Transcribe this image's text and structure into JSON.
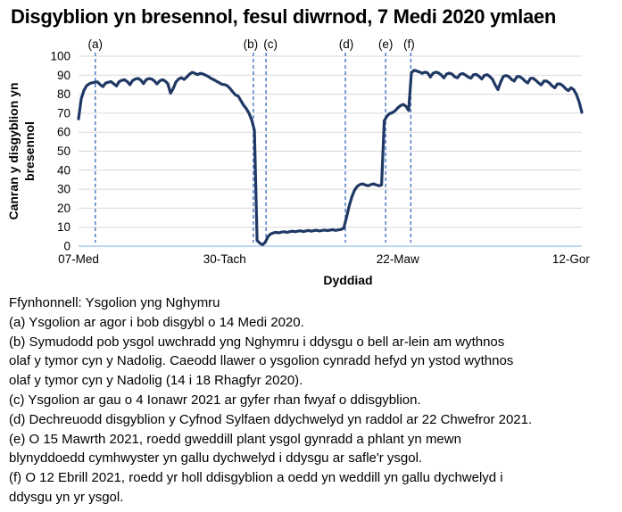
{
  "title": "Disgyblion yn bresennol, fesul diwrnod, 7 Medi 2020 ymlaen",
  "footer": {
    "source": "Ffynhonnell: Ysgolion yng Nghymru",
    "notes": [
      "(a) Ysgolion ar agor i bob disgybl o 14 Medi 2020.",
      "(b) Symudodd pob ysgol uwchradd yng Nghymru i ddysgu o bell ar-lein am wythnos\nolaf y tymor cyn y Nadolig. Caeodd llawer o ysgolion cynradd hefyd yn ystod wythnos\nolaf y tymor cyn y Nadolig (14 i 18 Rhagfyr 2020).",
      "(c) Ysgolion ar gau o 4 Ionawr 2021 ar gyfer rhan fwyaf o ddisgyblion.",
      "(d) Dechreuodd disgyblion y Cyfnod Sylfaen ddychwelyd yn raddol ar 22 Chwefror 2021.",
      "(e) O 15 Mawrth 2021, roedd gweddill plant ysgol gynradd a phlant yn mewn\nblynyddoedd cymhwyster yn gallu dychwelyd i ddysgu ar safle'r ysgol.",
      "(f) O 12 Ebrill 2021, roedd yr holl ddisgyblion a oedd yn weddill yn gallu dychwelyd i\nddysgu yn yr ysgol."
    ]
  },
  "chart_data": {
    "type": "line",
    "title": "Disgyblion yn bresennol, fesul diwrnod, 7 Medi 2020 ymlaen",
    "xlabel": "Dyddiad",
    "ylabel": "Canran y disgyblion yn bresennol",
    "ylabel_lines": [
      "Canran y disgyblion yn",
      "bresennol"
    ],
    "ylim": [
      0,
      100
    ],
    "ytick_step": 10,
    "grid": true,
    "legend_position": "none",
    "x_axis_unit": "school-day index from 07 Medi 2020",
    "x_range_days": [
      0,
      186
    ],
    "x_ticks": [
      {
        "label": "07-Med",
        "day": 0
      },
      {
        "label": "30-Tach",
        "day": 54
      },
      {
        "label": "22-Maw",
        "day": 118
      },
      {
        "label": "12-Gor",
        "day": 182
      }
    ],
    "annotations": [
      {
        "label": "(a)",
        "day": 6.2,
        "label_dx": 0
      },
      {
        "label": "(b)",
        "day": 64.6,
        "label_dx": -3
      },
      {
        "label": "(c)",
        "day": 69.3,
        "label_dx": 5
      },
      {
        "label": "(d)",
        "day": 98.6,
        "label_dx": 1
      },
      {
        "label": "(e)",
        "day": 113.5,
        "label_dx": 0
      },
      {
        "label": "(f)",
        "day": 122.8,
        "label_dx": -2
      }
    ],
    "colors": {
      "line": "#1F3864",
      "annotation": "#4472C4",
      "grid": "#D9D9D9",
      "axis": "#A6C9EC",
      "text": "#000000"
    },
    "series": [
      {
        "name": "Canran y disgyblion yn bresennol (%)",
        "points": [
          [
            0,
            67
          ],
          [
            1,
            77.5
          ],
          [
            2,
            82
          ],
          [
            3,
            84.5
          ],
          [
            4,
            85.5
          ],
          [
            5,
            86
          ],
          [
            6,
            86.3
          ],
          [
            7,
            86.5
          ],
          [
            8,
            85
          ],
          [
            9,
            84
          ],
          [
            10,
            85.8
          ],
          [
            11,
            86.3
          ],
          [
            12,
            86.6
          ],
          [
            13,
            85.5
          ],
          [
            14,
            84.3
          ],
          [
            15,
            86.6
          ],
          [
            16,
            87.3
          ],
          [
            17,
            87.6
          ],
          [
            18,
            86.6
          ],
          [
            19,
            85
          ],
          [
            20,
            87.2
          ],
          [
            21,
            88
          ],
          [
            22,
            88.3
          ],
          [
            23,
            87.4
          ],
          [
            24,
            85.6
          ],
          [
            25,
            87.6
          ],
          [
            26,
            88.2
          ],
          [
            27,
            88
          ],
          [
            28,
            87
          ],
          [
            29,
            85.4
          ],
          [
            30,
            87
          ],
          [
            31,
            87.6
          ],
          [
            32,
            87
          ],
          [
            33,
            85.5
          ],
          [
            34,
            80.5
          ],
          [
            35,
            83
          ],
          [
            36,
            86.5
          ],
          [
            37,
            88
          ],
          [
            38,
            88.7
          ],
          [
            39,
            87.8
          ],
          [
            40,
            89
          ],
          [
            41,
            90.5
          ],
          [
            42,
            91.5
          ],
          [
            43,
            91
          ],
          [
            44,
            90.3
          ],
          [
            45,
            91
          ],
          [
            46,
            90.6
          ],
          [
            47,
            90
          ],
          [
            48,
            89.3
          ],
          [
            49,
            88.3
          ],
          [
            50,
            87.6
          ],
          [
            51,
            86.8
          ],
          [
            52,
            86
          ],
          [
            53,
            85.2
          ],
          [
            54,
            85
          ],
          [
            55,
            84.4
          ],
          [
            56,
            83
          ],
          [
            57,
            81.2
          ],
          [
            58,
            79.6
          ],
          [
            59,
            79
          ],
          [
            60,
            76.6
          ],
          [
            61,
            74.2
          ],
          [
            62,
            72.4
          ],
          [
            63,
            70
          ],
          [
            64,
            66.4
          ],
          [
            65,
            61
          ],
          [
            66,
            3
          ],
          [
            67,
            1.6
          ],
          [
            68,
            0.8
          ],
          [
            69,
            2
          ],
          [
            70,
            5
          ],
          [
            71,
            6.5
          ],
          [
            72,
            7
          ],
          [
            73,
            7.3
          ],
          [
            74,
            7
          ],
          [
            75,
            7.4
          ],
          [
            76,
            7.6
          ],
          [
            77,
            7.3
          ],
          [
            78,
            7.6
          ],
          [
            79,
            7.9
          ],
          [
            80,
            7.6
          ],
          [
            81,
            7.9
          ],
          [
            82,
            8.1
          ],
          [
            83,
            7.7
          ],
          [
            84,
            8
          ],
          [
            85,
            8.3
          ],
          [
            86,
            7.9
          ],
          [
            87,
            8.2
          ],
          [
            88,
            8.4
          ],
          [
            89,
            8
          ],
          [
            90,
            8.3
          ],
          [
            91,
            8.5
          ],
          [
            92,
            8.2
          ],
          [
            93,
            8.5
          ],
          [
            94,
            8.7
          ],
          [
            95,
            8.3
          ],
          [
            96,
            8.6
          ],
          [
            97,
            8.8
          ],
          [
            98,
            9.5
          ],
          [
            99,
            15
          ],
          [
            100,
            21
          ],
          [
            101,
            26
          ],
          [
            102,
            29.5
          ],
          [
            103,
            31.5
          ],
          [
            104,
            32.5
          ],
          [
            105,
            32.8
          ],
          [
            106,
            32.2
          ],
          [
            107,
            31.8
          ],
          [
            108,
            32.4
          ],
          [
            109,
            32.8
          ],
          [
            110,
            32.3
          ],
          [
            111,
            31.8
          ],
          [
            112,
            32.2
          ],
          [
            113,
            66
          ],
          [
            114,
            68.5
          ],
          [
            115,
            69.8
          ],
          [
            116,
            70.3
          ],
          [
            117,
            71.3
          ],
          [
            118,
            72.8
          ],
          [
            119,
            74
          ],
          [
            120,
            74.6
          ],
          [
            121,
            73.6
          ],
          [
            122,
            71.4
          ],
          [
            123,
            91.3
          ],
          [
            124,
            92.6
          ],
          [
            125,
            92.2
          ],
          [
            126,
            91.7
          ],
          [
            127,
            91
          ],
          [
            128,
            91.6
          ],
          [
            129,
            91.2
          ],
          [
            130,
            89
          ],
          [
            131,
            91
          ],
          [
            132,
            91.6
          ],
          [
            133,
            91.2
          ],
          [
            134,
            90.2
          ],
          [
            135,
            88.6
          ],
          [
            136,
            90.6
          ],
          [
            137,
            91.1
          ],
          [
            138,
            90.6
          ],
          [
            139,
            89.2
          ],
          [
            140,
            88.6
          ],
          [
            141,
            90.4
          ],
          [
            142,
            90.9
          ],
          [
            143,
            90.1
          ],
          [
            144,
            89
          ],
          [
            145,
            88.4
          ],
          [
            146,
            90.3
          ],
          [
            147,
            90.4
          ],
          [
            148,
            89.4
          ],
          [
            149,
            88
          ],
          [
            150,
            89.9
          ],
          [
            151,
            90.3
          ],
          [
            152,
            89.3
          ],
          [
            153,
            87.8
          ],
          [
            154,
            84.8
          ],
          [
            155,
            82.4
          ],
          [
            156,
            86.4
          ],
          [
            157,
            89.4
          ],
          [
            158,
            89.8
          ],
          [
            159,
            89.3
          ],
          [
            160,
            87.8
          ],
          [
            161,
            86.9
          ],
          [
            162,
            89.2
          ],
          [
            163,
            89.3
          ],
          [
            164,
            88.3
          ],
          [
            165,
            86.9
          ],
          [
            166,
            85.9
          ],
          [
            167,
            88.3
          ],
          [
            168,
            88.4
          ],
          [
            169,
            87.3
          ],
          [
            170,
            85.9
          ],
          [
            171,
            84.9
          ],
          [
            172,
            86.9
          ],
          [
            173,
            86.9
          ],
          [
            174,
            85.9
          ],
          [
            175,
            84.4
          ],
          [
            176,
            83.4
          ],
          [
            177,
            85.4
          ],
          [
            178,
            85.4
          ],
          [
            179,
            84.4
          ],
          [
            180,
            82.9
          ],
          [
            181,
            81.9
          ],
          [
            182,
            83.4
          ],
          [
            183,
            82.4
          ],
          [
            184,
            79.9
          ],
          [
            185,
            75.9
          ],
          [
            186,
            70.4
          ]
        ]
      }
    ]
  }
}
